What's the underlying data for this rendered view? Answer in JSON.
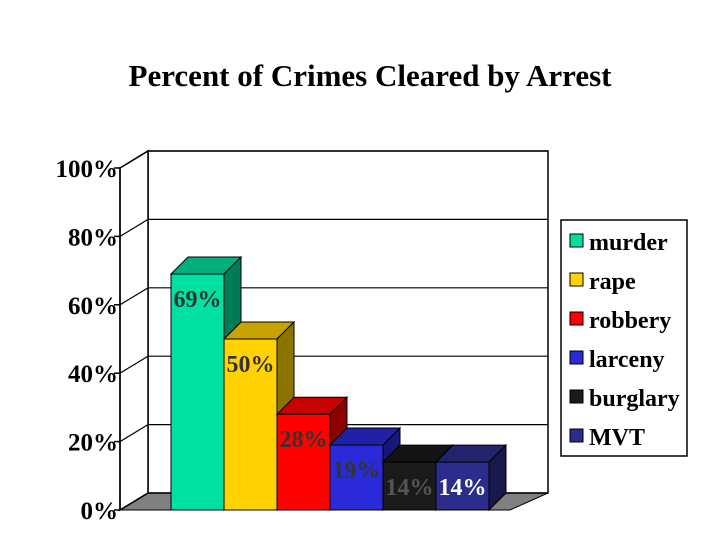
{
  "chart_data": {
    "type": "bar",
    "title": "Percent of Crimes Cleared by Arrest",
    "xlabel": "",
    "ylabel": "",
    "ylim": [
      0,
      100
    ],
    "yticks": [
      0,
      20,
      40,
      60,
      80,
      100
    ],
    "ytick_labels": [
      "0%",
      "20%",
      "40%",
      "60%",
      "80%",
      "100%"
    ],
    "grid": true,
    "legend_position": "right",
    "three_d": true,
    "series": [
      {
        "name": "murder",
        "value": 69,
        "label": "69%",
        "color": "#00e0a0",
        "label_color": "#333333"
      },
      {
        "name": "rape",
        "value": 50,
        "label": "50%",
        "color": "#ffd200",
        "label_color": "#333333"
      },
      {
        "name": "robbery",
        "value": 28,
        "label": "28%",
        "color": "#ff0000",
        "label_color": "#333333"
      },
      {
        "name": "larceny",
        "value": 19,
        "label": "19%",
        "color": "#2a2ad8",
        "label_color": "#333333"
      },
      {
        "name": "burglary",
        "value": 14,
        "label": "14%",
        "color": "#1a1a1a",
        "label_color": "#555555"
      },
      {
        "name": "MVT",
        "value": 14,
        "label": "14%",
        "color": "#2c2c8c",
        "label_color": "#ffffff"
      }
    ],
    "colors": {
      "floor": "#808080",
      "grid": "#000000",
      "text": "#000000"
    }
  }
}
